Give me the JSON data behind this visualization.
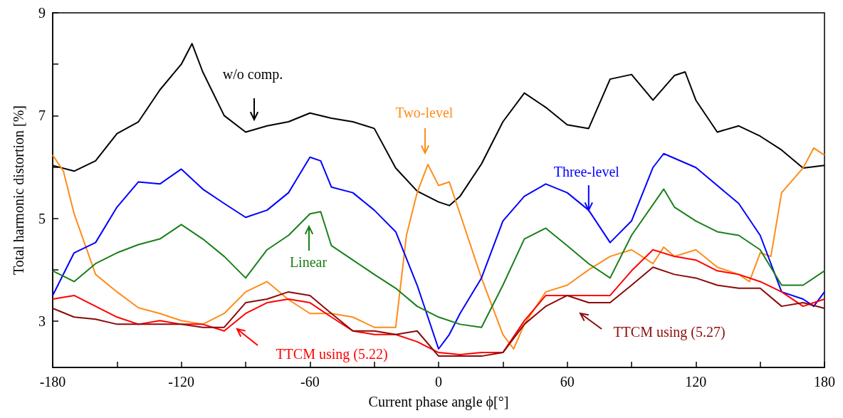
{
  "chart_data": {
    "type": "line",
    "xlabel": "Current phase angle ϕ[°]",
    "ylabel": "Total harmonic distortion [%]",
    "xlim": [
      -180,
      180
    ],
    "ylim": [
      2.1,
      9
    ],
    "xticks": [
      -180,
      {
        "value": -150,
        "label": null
      },
      -120,
      {
        "value": -90,
        "label": null
      },
      -60,
      {
        "value": -30,
        "label": null
      },
      0,
      {
        "value": 30,
        "label": null
      },
      60,
      {
        "value": 90,
        "label": null
      },
      120,
      {
        "value": 150,
        "label": null
      },
      180
    ],
    "yticks": [
      3,
      {
        "value": 4,
        "label": null
      },
      5,
      {
        "value": 6,
        "label": null
      },
      7,
      {
        "value": 8,
        "label": null
      },
      9
    ],
    "marker": "none",
    "line_style": "solid",
    "series": [
      {
        "color": "#000000",
        "x": [
          -180,
          -170,
          -160,
          -150,
          -140,
          -130,
          -120,
          -115,
          -110,
          -100,
          -90,
          -80,
          -70,
          -60,
          -50,
          -40,
          -30,
          -20,
          -10,
          0,
          5,
          10,
          20,
          30,
          40,
          50,
          60,
          70,
          80,
          90,
          100,
          110,
          115,
          120,
          130,
          140,
          150,
          160,
          170,
          180
        ],
        "values": [
          6.03,
          5.92,
          6.12,
          6.65,
          6.88,
          7.5,
          8.0,
          8.4,
          7.85,
          7.0,
          6.68,
          6.8,
          6.88,
          7.05,
          6.95,
          6.88,
          6.75,
          5.98,
          5.53,
          5.32,
          5.25,
          5.43,
          6.06,
          6.88,
          7.44,
          7.16,
          6.82,
          6.75,
          7.71,
          7.8,
          7.3,
          7.78,
          7.85,
          7.3,
          6.68,
          6.8,
          6.6,
          6.33,
          5.98,
          6.03
        ]
      },
      {
        "color": "#ff8c1a",
        "x": [
          -180,
          -175,
          -170,
          -160,
          -150,
          -140,
          -130,
          -120,
          -110,
          -100,
          -90,
          -80,
          -70,
          -60,
          -50,
          -40,
          -30,
          -20,
          -15,
          -10,
          -5,
          0,
          5,
          10,
          20,
          30,
          35,
          40,
          50,
          60,
          70,
          80,
          90,
          100,
          105,
          110,
          120,
          130,
          140,
          145,
          150,
          155,
          160,
          170,
          175,
          180
        ],
        "values": [
          6.23,
          5.92,
          5.09,
          3.91,
          3.57,
          3.26,
          3.15,
          3.01,
          2.94,
          3.15,
          3.57,
          3.77,
          3.42,
          3.15,
          3.15,
          3.08,
          2.88,
          2.88,
          4.67,
          5.5,
          6.05,
          5.64,
          5.71,
          5.09,
          3.84,
          2.74,
          2.46,
          2.94,
          3.57,
          3.7,
          4.0,
          4.26,
          4.39,
          4.12,
          4.44,
          4.26,
          4.39,
          4.05,
          3.91,
          3.77,
          4.33,
          4.26,
          5.5,
          5.98,
          6.37,
          6.23
        ]
      },
      {
        "color": "#0000ff",
        "x": [
          -180,
          -170,
          -160,
          -150,
          -140,
          -130,
          -120,
          -110,
          -100,
          -90,
          -80,
          -70,
          -60,
          -55,
          -50,
          -40,
          -30,
          -20,
          -10,
          0,
          5,
          10,
          20,
          30,
          40,
          50,
          60,
          70,
          80,
          90,
          100,
          105,
          120,
          130,
          140,
          150,
          160,
          170,
          175,
          180
        ],
        "values": [
          3.5,
          4.33,
          4.53,
          5.22,
          5.71,
          5.67,
          5.96,
          5.57,
          5.29,
          5.02,
          5.16,
          5.5,
          6.19,
          6.12,
          5.61,
          5.5,
          5.16,
          4.74,
          3.7,
          2.46,
          2.74,
          3.15,
          3.84,
          4.95,
          5.43,
          5.67,
          5.5,
          5.16,
          4.53,
          4.95,
          5.99,
          6.26,
          5.99,
          5.64,
          5.29,
          4.67,
          3.57,
          3.43,
          3.29,
          3.57
        ]
      },
      {
        "color": "#1a7f1a",
        "x": [
          -180,
          -170,
          -160,
          -150,
          -140,
          -130,
          -120,
          -110,
          -100,
          -90,
          -80,
          -70,
          -60,
          -55,
          -50,
          -40,
          -30,
          -20,
          -10,
          0,
          10,
          20,
          30,
          40,
          50,
          60,
          70,
          80,
          90,
          105,
          110,
          120,
          130,
          140,
          150,
          160,
          170,
          180
        ],
        "values": [
          3.98,
          3.77,
          4.12,
          4.33,
          4.49,
          4.6,
          4.88,
          4.6,
          4.26,
          3.84,
          4.39,
          4.67,
          5.09,
          5.13,
          4.47,
          4.19,
          3.91,
          3.64,
          3.29,
          3.08,
          2.94,
          2.88,
          3.7,
          4.6,
          4.81,
          4.47,
          4.12,
          3.84,
          4.67,
          5.57,
          5.22,
          4.95,
          4.74,
          4.67,
          4.39,
          3.7,
          3.7,
          3.98
        ]
      },
      {
        "color": "#ff0000",
        "x": [
          -180,
          -170,
          -160,
          -150,
          -140,
          -130,
          -120,
          -110,
          -100,
          -90,
          -80,
          -70,
          -60,
          -50,
          -40,
          -30,
          -20,
          -10,
          0,
          10,
          20,
          30,
          40,
          50,
          60,
          70,
          80,
          90,
          100,
          110,
          120,
          130,
          140,
          150,
          160,
          170,
          180
        ],
        "values": [
          3.43,
          3.5,
          3.29,
          3.08,
          2.94,
          3.01,
          2.94,
          2.94,
          2.81,
          3.15,
          3.36,
          3.43,
          3.36,
          3.08,
          2.81,
          2.74,
          2.74,
          2.6,
          2.39,
          2.35,
          2.39,
          2.39,
          3.01,
          3.5,
          3.5,
          3.5,
          3.5,
          3.98,
          4.39,
          4.26,
          4.19,
          3.98,
          3.91,
          3.77,
          3.57,
          3.29,
          3.43
        ]
      },
      {
        "color": "#8b0a0a",
        "x": [
          -180,
          -170,
          -160,
          -150,
          -140,
          -130,
          -120,
          -110,
          -100,
          -90,
          -80,
          -70,
          -60,
          -50,
          -40,
          -30,
          -20,
          -10,
          0,
          10,
          20,
          30,
          40,
          50,
          60,
          70,
          80,
          90,
          100,
          110,
          120,
          130,
          140,
          150,
          160,
          170,
          180
        ],
        "values": [
          3.25,
          3.08,
          3.04,
          2.94,
          2.94,
          2.94,
          2.94,
          2.88,
          2.88,
          3.36,
          3.43,
          3.57,
          3.5,
          3.15,
          2.81,
          2.81,
          2.74,
          2.81,
          2.32,
          2.32,
          2.32,
          2.39,
          2.94,
          3.29,
          3.5,
          3.36,
          3.36,
          3.7,
          4.05,
          3.91,
          3.84,
          3.7,
          3.64,
          3.64,
          3.29,
          3.36,
          3.25
        ]
      }
    ],
    "annotations": [
      "w/o comp.",
      "Two-level",
      {
        "text": "Three-level",
        "x": 70,
        "y": 5.16
      },
      "Linear",
      "TTCM using (5.22)",
      "TTCM using (5.27)"
    ]
  }
}
